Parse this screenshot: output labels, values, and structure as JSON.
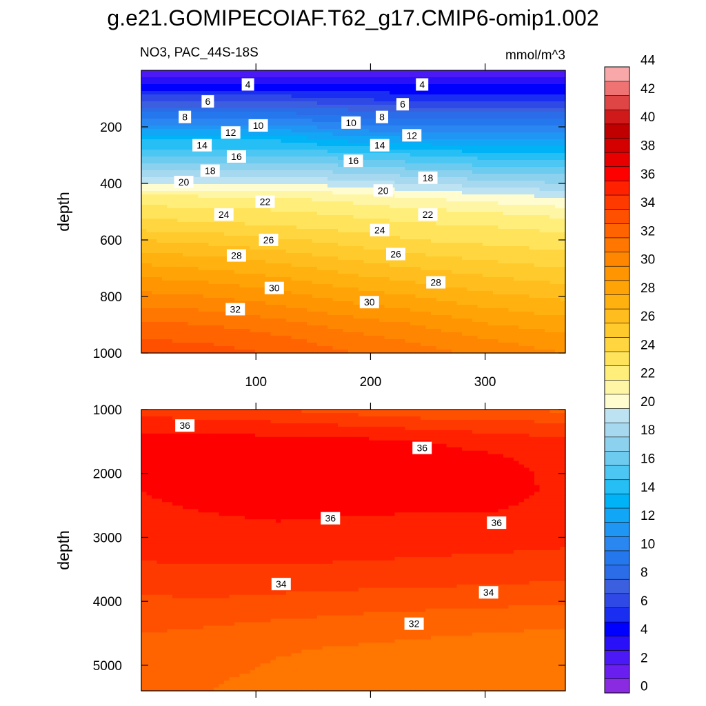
{
  "title": "g.e21.GOMIPECOIAF.T62_g17.CMIP6-omip1.002",
  "variable_label": "NO3, PAC_44S-18S",
  "units_label": "mmol/m^3",
  "colors": {
    "levels_rgb": [
      "#8a2be2",
      "#6a1ff0",
      "#4b19f5",
      "#2a10f8",
      "#0000ff",
      "#1a2ef2",
      "#2f49e6",
      "#3c5fe0",
      "#2b6de8",
      "#2577ee",
      "#2a86f0",
      "#1f95f4",
      "#12a6f6",
      "#00b2f6",
      "#25bff5",
      "#4cc6f2",
      "#6ecbf0",
      "#8cd1ee",
      "#a6d9ef",
      "#bde3f2",
      "#fffdd0",
      "#fff6a5",
      "#ffef7a",
      "#ffe35a",
      "#ffd640",
      "#ffca2c",
      "#ffbd1e",
      "#ffb110",
      "#ffa306",
      "#ff9500",
      "#ff8600",
      "#ff7600",
      "#ff6400",
      "#ff5000",
      "#ff3a00",
      "#ff2100",
      "#ff0000",
      "#e80000",
      "#d40000",
      "#c00000",
      "#d01a1a",
      "#e04545",
      "#ef7373",
      "#f8a8a8"
    ]
  },
  "chart_data": [
    {
      "type": "heatmap",
      "panel": "upper",
      "title": "",
      "xlabel": "",
      "ylabel": "depth",
      "xlim": [
        0,
        370
      ],
      "ylim": [
        1000,
        0
      ],
      "y_reversed": true,
      "x_ticks": [
        100,
        200,
        300
      ],
      "y_ticks": [
        200,
        400,
        600,
        800,
        1000
      ],
      "x": [
        0,
        60,
        120,
        180,
        240,
        300,
        370
      ],
      "y": [
        0,
        50,
        100,
        150,
        200,
        250,
        300,
        350,
        400,
        450,
        500,
        550,
        600,
        650,
        700,
        750,
        800,
        850,
        900,
        950,
        1000
      ],
      "z": [
        [
          2,
          2,
          2,
          2,
          2,
          2,
          2
        ],
        [
          4,
          4,
          4,
          4,
          4,
          4,
          4
        ],
        [
          6.5,
          6.5,
          6.5,
          6,
          5.5,
          5.5,
          5.5
        ],
        [
          9,
          9,
          9,
          8.5,
          8,
          8,
          8
        ],
        [
          11.5,
          11.5,
          11.5,
          10.5,
          10,
          10,
          10
        ],
        [
          14,
          14,
          14,
          13,
          12.5,
          12,
          12
        ],
        [
          16,
          16,
          16,
          15.5,
          15,
          14.5,
          14.5
        ],
        [
          18,
          18,
          18,
          17.5,
          17,
          16.5,
          16.5
        ],
        [
          20,
          20,
          20,
          19.5,
          19,
          18.5,
          18
        ],
        [
          22.3,
          22.2,
          22.1,
          21.6,
          21,
          20.5,
          20
        ],
        [
          23.5,
          23.3,
          23.1,
          22.7,
          22.3,
          22,
          21.5
        ],
        [
          24.5,
          24.3,
          24,
          23.6,
          23.2,
          23,
          22.6
        ],
        [
          26,
          25.6,
          25.2,
          24.6,
          24,
          23.7,
          23.4
        ],
        [
          27.2,
          26.8,
          26.3,
          25.6,
          25,
          24.6,
          24.2
        ],
        [
          28.3,
          27.9,
          27.4,
          26.6,
          26,
          25.5,
          25
        ],
        [
          29.4,
          29,
          28.4,
          27.6,
          27,
          26.4,
          25.9
        ],
        [
          30.3,
          30,
          29.4,
          28.6,
          28,
          27.3,
          26.8
        ],
        [
          31.3,
          31,
          30.4,
          29.6,
          29,
          28.2,
          27.6
        ],
        [
          32.2,
          32,
          31.4,
          30.6,
          30,
          29.1,
          28.5
        ],
        [
          33,
          32.8,
          32.2,
          31.4,
          30.8,
          30,
          29.3
        ],
        [
          33.6,
          33.4,
          32.9,
          32.1,
          31.5,
          30.7,
          30
        ]
      ],
      "contour_labels": [
        {
          "text": "4",
          "x": 93,
          "y": 50
        },
        {
          "text": "4",
          "x": 245,
          "y": 50
        },
        {
          "text": "6",
          "x": 58,
          "y": 110
        },
        {
          "text": "6",
          "x": 228,
          "y": 120
        },
        {
          "text": "8",
          "x": 38,
          "y": 165
        },
        {
          "text": "8",
          "x": 210,
          "y": 165
        },
        {
          "text": "10",
          "x": 102,
          "y": 195
        },
        {
          "text": "10",
          "x": 183,
          "y": 185
        },
        {
          "text": "12",
          "x": 78,
          "y": 220
        },
        {
          "text": "12",
          "x": 236,
          "y": 230
        },
        {
          "text": "14",
          "x": 53,
          "y": 265
        },
        {
          "text": "14",
          "x": 208,
          "y": 265
        },
        {
          "text": "16",
          "x": 83,
          "y": 305
        },
        {
          "text": "16",
          "x": 185,
          "y": 320
        },
        {
          "text": "18",
          "x": 60,
          "y": 355
        },
        {
          "text": "18",
          "x": 250,
          "y": 380
        },
        {
          "text": "20",
          "x": 37,
          "y": 395
        },
        {
          "text": "20",
          "x": 211,
          "y": 425
        },
        {
          "text": "22",
          "x": 108,
          "y": 465
        },
        {
          "text": "22",
          "x": 250,
          "y": 510
        },
        {
          "text": "24",
          "x": 72,
          "y": 510
        },
        {
          "text": "24",
          "x": 208,
          "y": 565
        },
        {
          "text": "26",
          "x": 111,
          "y": 600
        },
        {
          "text": "26",
          "x": 222,
          "y": 650
        },
        {
          "text": "28",
          "x": 83,
          "y": 655
        },
        {
          "text": "28",
          "x": 257,
          "y": 750
        },
        {
          "text": "30",
          "x": 116,
          "y": 770
        },
        {
          "text": "30",
          "x": 199,
          "y": 820
        },
        {
          "text": "32",
          "x": 82,
          "y": 845
        }
      ]
    },
    {
      "type": "heatmap",
      "panel": "lower",
      "title": "",
      "xlabel": "",
      "ylabel": "depth",
      "xlim": [
        0,
        370
      ],
      "ylim": [
        5400,
        1000
      ],
      "y_reversed": true,
      "y_ticks": [
        1000,
        2000,
        3000,
        4000,
        5000
      ],
      "x": [
        0,
        60,
        120,
        180,
        240,
        300,
        370
      ],
      "y": [
        1000,
        1250,
        1500,
        1750,
        2000,
        2250,
        2500,
        2750,
        3000,
        3250,
        3500,
        3750,
        4000,
        4250,
        4500,
        4750,
        5000,
        5200,
        5400
      ],
      "z": [
        [
          34.5,
          34.2,
          34,
          33.6,
          33.2,
          33,
          32.8
        ],
        [
          35.6,
          35.5,
          35.3,
          35,
          34.7,
          34.5,
          34.3
        ],
        [
          36.3,
          36.4,
          36.4,
          36.3,
          36.1,
          35.6,
          35.2
        ],
        [
          36.4,
          36.8,
          36.9,
          36.7,
          36.4,
          36.2,
          35.6
        ],
        [
          36.2,
          36.7,
          36.8,
          36.6,
          36.5,
          36.3,
          35.8
        ],
        [
          36,
          36.3,
          36.5,
          36.4,
          36.4,
          36.4,
          35.8
        ],
        [
          35.9,
          36.1,
          36.2,
          36.2,
          36.2,
          36.2,
          35.7
        ],
        [
          35.8,
          35.9,
          36,
          35.9,
          35.8,
          35.8,
          35.5
        ],
        [
          35.6,
          35.7,
          35.7,
          35.6,
          35.5,
          35.4,
          35.2
        ],
        [
          35.2,
          35.3,
          35.3,
          35.2,
          35.1,
          35,
          34.9
        ],
        [
          34.8,
          34.9,
          34.9,
          34.8,
          34.7,
          34.6,
          34.5
        ],
        [
          34.3,
          34.4,
          34.3,
          34.2,
          34.1,
          34,
          33.8
        ],
        [
          33.8,
          33.9,
          33.7,
          33.5,
          33.4,
          33.3,
          33.1
        ],
        [
          33.4,
          33.3,
          33.1,
          32.9,
          32.7,
          32.6,
          32.4
        ],
        [
          33,
          32.8,
          32.5,
          32.3,
          32.1,
          32,
          31.8
        ],
        [
          32.7,
          32.5,
          32.1,
          31.9,
          31.8,
          31.7,
          31.5
        ],
        [
          32.5,
          32.3,
          31.9,
          31.7,
          31.6,
          31.5,
          31.4
        ],
        [
          32.3,
          32.1,
          31.8,
          31.6,
          31.5,
          31.4,
          31.3
        ],
        [
          32.2,
          32,
          31.7,
          31.5,
          31.4,
          31.3,
          31.2
        ]
      ],
      "contour_labels": [
        {
          "text": "36",
          "x": 38,
          "y": 1250
        },
        {
          "text": "36",
          "x": 245,
          "y": 1600
        },
        {
          "text": "36",
          "x": 165,
          "y": 2700
        },
        {
          "text": "36",
          "x": 310,
          "y": 2770
        },
        {
          "text": "34",
          "x": 122,
          "y": 3730
        },
        {
          "text": "34",
          "x": 303,
          "y": 3860
        },
        {
          "text": "32",
          "x": 238,
          "y": 4350
        }
      ]
    }
  ],
  "colorbar": {
    "levels": [
      0,
      1,
      2,
      3,
      4,
      5,
      6,
      7,
      8,
      9,
      10,
      11,
      12,
      13,
      14,
      15,
      16,
      17,
      18,
      19,
      20,
      21,
      22,
      23,
      24,
      25,
      26,
      27,
      28,
      29,
      30,
      31,
      32,
      33,
      34,
      35,
      36,
      37,
      38,
      39,
      40,
      41,
      42,
      43,
      44
    ],
    "tick_labels": [
      "0",
      "2",
      "4",
      "6",
      "8",
      "10",
      "12",
      "14",
      "16",
      "18",
      "20",
      "22",
      "24",
      "26",
      "28",
      "30",
      "32",
      "34",
      "36",
      "38",
      "40",
      "42",
      "44"
    ]
  }
}
